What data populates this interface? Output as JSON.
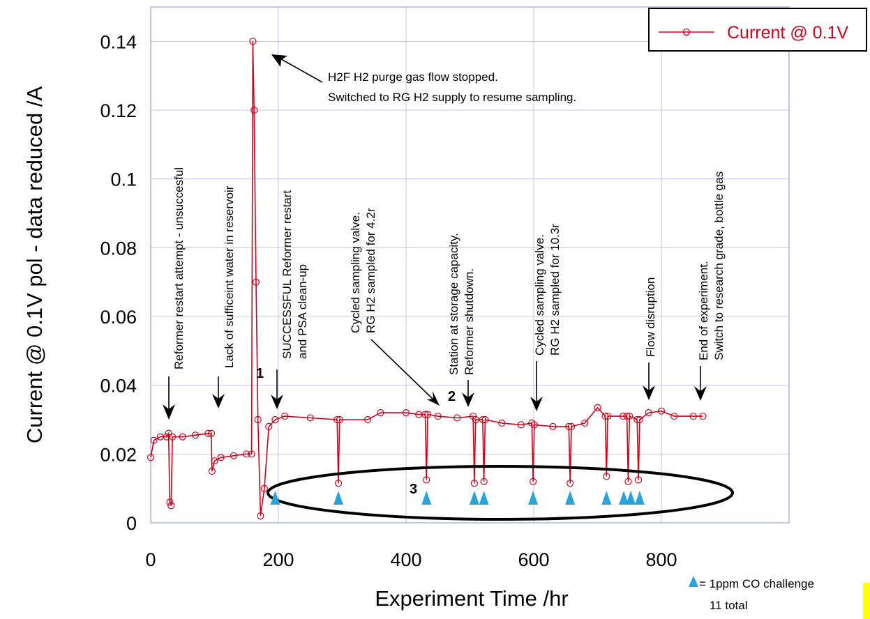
{
  "chart_data": {
    "type": "line",
    "xlabel": "Experiment Time /hr",
    "ylabel": "Current @ 0.1V pol - data reduced /A",
    "xlim": [
      0,
      1000
    ],
    "ylim": [
      0,
      0.15
    ],
    "x_ticks": [
      "0",
      "200",
      "400",
      "600",
      "800"
    ],
    "y_ticks": [
      "0",
      "0.02",
      "0.04",
      "0.06",
      "0.08",
      "0.1",
      "0.12",
      "0.14"
    ],
    "grid": true,
    "legend_position": "top-right",
    "series": [
      {
        "name": "Current @ 0.1V",
        "color": "#d0021b",
        "marker": "open-circle",
        "points": [
          [
            0,
            0.019
          ],
          [
            5,
            0.024
          ],
          [
            15,
            0.025
          ],
          [
            25,
            0.025
          ],
          [
            28,
            0.026
          ],
          [
            30,
            0.006
          ],
          [
            32,
            0.005
          ],
          [
            34,
            0.025
          ],
          [
            50,
            0.025
          ],
          [
            70,
            0.0255
          ],
          [
            90,
            0.026
          ],
          [
            95,
            0.026
          ],
          [
            96,
            0.015
          ],
          [
            100,
            0.018
          ],
          [
            110,
            0.019
          ],
          [
            130,
            0.0195
          ],
          [
            150,
            0.02
          ],
          [
            158,
            0.02
          ],
          [
            160,
            0.14
          ],
          [
            162,
            0.12
          ],
          [
            165,
            0.07
          ],
          [
            168,
            0.03
          ],
          [
            172,
            0.002
          ],
          [
            178,
            0.01
          ],
          [
            185,
            0.028
          ],
          [
            195,
            0.03
          ],
          [
            210,
            0.031
          ],
          [
            250,
            0.0305
          ],
          [
            292,
            0.03
          ],
          [
            294,
            0.0115
          ],
          [
            296,
            0.03
          ],
          [
            340,
            0.03
          ],
          [
            360,
            0.032
          ],
          [
            400,
            0.032
          ],
          [
            420,
            0.0315
          ],
          [
            430,
            0.0315
          ],
          [
            432,
            0.0125
          ],
          [
            434,
            0.0315
          ],
          [
            450,
            0.031
          ],
          [
            480,
            0.0305
          ],
          [
            505,
            0.031
          ],
          [
            507,
            0.0115
          ],
          [
            509,
            0.03
          ],
          [
            520,
            0.03
          ],
          [
            522,
            0.012
          ],
          [
            524,
            0.03
          ],
          [
            550,
            0.029
          ],
          [
            580,
            0.0285
          ],
          [
            597,
            0.029
          ],
          [
            599,
            0.012
          ],
          [
            601,
            0.0285
          ],
          [
            630,
            0.028
          ],
          [
            655,
            0.028
          ],
          [
            657,
            0.0115
          ],
          [
            659,
            0.028
          ],
          [
            680,
            0.029
          ],
          [
            700,
            0.0335
          ],
          [
            712,
            0.031
          ],
          [
            714,
            0.0135
          ],
          [
            716,
            0.031
          ],
          [
            740,
            0.031
          ],
          [
            746,
            0.031
          ],
          [
            748,
            0.012
          ],
          [
            750,
            0.031
          ],
          [
            762,
            0.03
          ],
          [
            764,
            0.0125
          ],
          [
            766,
            0.03
          ],
          [
            780,
            0.032
          ],
          [
            800,
            0.0325
          ],
          [
            820,
            0.031
          ],
          [
            850,
            0.031
          ],
          [
            865,
            0.031
          ]
        ]
      }
    ],
    "annotations": [
      "Reformer restart attempt - unsuccesful",
      "Lack of sufficeint water in reservoir",
      "SUCCESSFUL Reformer restart",
      "and PSA clean-up",
      "Cycled sampling valve.",
      "RG H2 sampled for 4.2r",
      "Station at storage capacity.",
      "Reformer shutdown.",
      "Cycled sampling valve.",
      "RG H2 sampled for 10.3r",
      "Flow disruption",
      "End of experiment.",
      "Switch to research grade, bottle gas",
      "H2F H2 purge gas flow stopped.",
      "Switched to RG H2 supply to resume sampling."
    ],
    "region_labels": [
      "1",
      "2",
      "3"
    ],
    "co_challenges_x": [
      195,
      294,
      432,
      507,
      522,
      599,
      657,
      714,
      741,
      752,
      766
    ],
    "co_challenge_note": [
      "= 1ppm CO challenge",
      "11 total"
    ],
    "co_marker_color": "#29a3dc"
  }
}
